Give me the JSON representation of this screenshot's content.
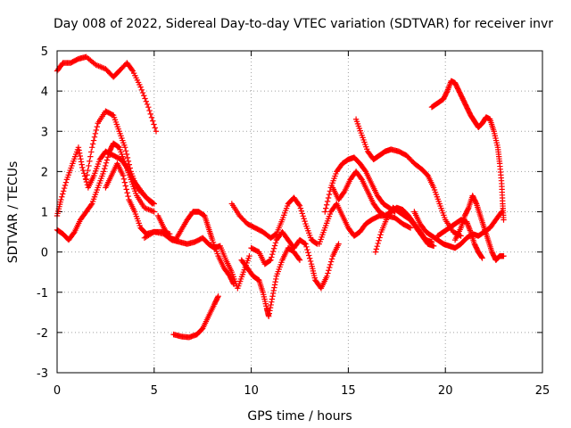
{
  "chart_data": {
    "type": "scatter",
    "title": "Day 008 of 2022, Sidereal Day-to-day VTEC variation (SDTVAR) for receiver invr",
    "xlabel": "GPS time / hours",
    "ylabel": "SDTVAR / TECUs",
    "xlim": [
      0,
      25
    ],
    "ylim": [
      -3,
      5
    ],
    "xticks": [
      "0",
      "5",
      "10",
      "15",
      "20",
      "25"
    ],
    "yticks": [
      "-3",
      "-2",
      "-1",
      "0",
      "1",
      "2",
      "3",
      "4",
      "5"
    ],
    "grid": true,
    "marker": "+",
    "color": "#ff0000",
    "series": [
      {
        "name": "trace-1",
        "points": [
          [
            0,
            4.5
          ],
          [
            0.3,
            4.7
          ],
          [
            0.7,
            4.7
          ],
          [
            1.1,
            4.8
          ],
          [
            1.5,
            4.85
          ],
          [
            2.0,
            4.65
          ],
          [
            2.5,
            4.55
          ],
          [
            2.9,
            4.35
          ],
          [
            3.2,
            4.5
          ],
          [
            3.6,
            4.7
          ],
          [
            3.9,
            4.5
          ],
          [
            4.3,
            4.1
          ],
          [
            4.7,
            3.6
          ],
          [
            5.1,
            3.0
          ]
        ]
      },
      {
        "name": "trace-2",
        "points": [
          [
            0,
            0.9
          ],
          [
            0.2,
            1.3
          ],
          [
            0.5,
            1.8
          ],
          [
            0.8,
            2.2
          ],
          [
            1.1,
            2.6
          ],
          [
            1.3,
            2.1
          ],
          [
            1.6,
            1.6
          ],
          [
            1.9,
            1.9
          ],
          [
            2.2,
            2.3
          ],
          [
            2.5,
            2.5
          ],
          [
            2.9,
            2.4
          ],
          [
            3.3,
            2.3
          ],
          [
            3.6,
            2.1
          ],
          [
            3.9,
            1.8
          ],
          [
            4.2,
            1.6
          ],
          [
            4.6,
            1.35
          ],
          [
            5.0,
            1.2
          ]
        ]
      },
      {
        "name": "trace-3",
        "points": [
          [
            0,
            0.55
          ],
          [
            0.3,
            0.45
          ],
          [
            0.6,
            0.3
          ],
          [
            0.9,
            0.5
          ],
          [
            1.2,
            0.8
          ],
          [
            1.5,
            1.0
          ],
          [
            1.8,
            1.2
          ],
          [
            2.1,
            1.6
          ],
          [
            2.4,
            2.0
          ],
          [
            2.7,
            2.5
          ],
          [
            2.9,
            2.7
          ],
          [
            3.2,
            2.6
          ],
          [
            3.5,
            2.2
          ],
          [
            3.8,
            1.8
          ],
          [
            4.1,
            1.4
          ],
          [
            4.5,
            1.1
          ],
          [
            5.0,
            1.0
          ]
        ]
      },
      {
        "name": "trace-4",
        "points": [
          [
            1.5,
            1.8
          ],
          [
            1.8,
            2.6
          ],
          [
            2.1,
            3.2
          ],
          [
            2.5,
            3.5
          ],
          [
            2.9,
            3.4
          ],
          [
            3.2,
            3.0
          ],
          [
            3.5,
            2.6
          ],
          [
            3.8,
            2.0
          ],
          [
            4.1,
            1.6
          ],
          [
            4.5,
            1.4
          ],
          [
            4.9,
            1.2
          ]
        ]
      },
      {
        "name": "trace-5",
        "points": [
          [
            2.5,
            1.6
          ],
          [
            2.8,
            1.9
          ],
          [
            3.1,
            2.2
          ],
          [
            3.4,
            1.9
          ],
          [
            3.7,
            1.3
          ],
          [
            4.0,
            1.0
          ],
          [
            4.3,
            0.6
          ],
          [
            4.6,
            0.45
          ],
          [
            5.0,
            0.5
          ],
          [
            5.4,
            0.5
          ],
          [
            5.8,
            0.45
          ]
        ]
      },
      {
        "name": "trace-6",
        "points": [
          [
            4.5,
            0.35
          ],
          [
            5.0,
            0.5
          ],
          [
            5.5,
            0.45
          ],
          [
            5.9,
            0.3
          ],
          [
            6.3,
            0.25
          ],
          [
            6.7,
            0.2
          ],
          [
            7.1,
            0.25
          ],
          [
            7.5,
            0.35
          ],
          [
            7.8,
            0.2
          ],
          [
            8.1,
            0.1
          ],
          [
            8.4,
            0.15
          ],
          [
            8.7,
            -0.2
          ],
          [
            9.0,
            -0.5
          ],
          [
            9.3,
            -0.9
          ],
          [
            9.6,
            -0.5
          ],
          [
            9.9,
            -0.1
          ]
        ]
      },
      {
        "name": "trace-7",
        "points": [
          [
            6.0,
            -2.05
          ],
          [
            6.4,
            -2.1
          ],
          [
            6.8,
            -2.12
          ],
          [
            7.2,
            -2.05
          ],
          [
            7.5,
            -1.9
          ],
          [
            7.8,
            -1.6
          ],
          [
            8.1,
            -1.3
          ],
          [
            8.3,
            -1.1
          ]
        ]
      },
      {
        "name": "trace-8",
        "points": [
          [
            5.2,
            0.9
          ],
          [
            5.5,
            0.6
          ],
          [
            5.8,
            0.35
          ],
          [
            6.1,
            0.3
          ],
          [
            6.4,
            0.55
          ],
          [
            6.7,
            0.8
          ],
          [
            7.0,
            1.0
          ],
          [
            7.3,
            1.0
          ],
          [
            7.6,
            0.9
          ],
          [
            7.8,
            0.6
          ],
          [
            8.0,
            0.3
          ],
          [
            8.3,
            -0.1
          ],
          [
            8.6,
            -0.4
          ],
          [
            8.9,
            -0.6
          ],
          [
            9.1,
            -0.8
          ]
        ]
      },
      {
        "name": "trace-9",
        "points": [
          [
            9.0,
            1.2
          ],
          [
            9.4,
            0.9
          ],
          [
            9.8,
            0.7
          ],
          [
            10.2,
            0.6
          ],
          [
            10.6,
            0.5
          ],
          [
            11.0,
            0.35
          ],
          [
            11.3,
            0.45
          ],
          [
            11.6,
            0.8
          ],
          [
            11.9,
            1.2
          ],
          [
            12.2,
            1.35
          ],
          [
            12.5,
            1.15
          ],
          [
            12.8,
            0.7
          ],
          [
            13.1,
            0.3
          ],
          [
            13.4,
            0.2
          ]
        ]
      },
      {
        "name": "trace-10",
        "points": [
          [
            9.5,
            -0.2
          ],
          [
            9.8,
            -0.4
          ],
          [
            10.1,
            -0.6
          ],
          [
            10.4,
            -0.7
          ],
          [
            10.6,
            -1.0
          ],
          [
            10.8,
            -1.4
          ],
          [
            10.9,
            -1.6
          ],
          [
            11.1,
            -1.1
          ],
          [
            11.3,
            -0.6
          ],
          [
            11.6,
            -0.2
          ],
          [
            11.9,
            0.1
          ],
          [
            12.2,
            0.0
          ],
          [
            12.5,
            -0.2
          ]
        ]
      },
      {
        "name": "trace-11",
        "points": [
          [
            10.0,
            0.1
          ],
          [
            10.4,
            0.0
          ],
          [
            10.7,
            -0.3
          ],
          [
            11.0,
            -0.2
          ],
          [
            11.3,
            0.3
          ],
          [
            11.6,
            0.5
          ],
          [
            11.9,
            0.3
          ],
          [
            12.2,
            0.1
          ],
          [
            12.5,
            0.3
          ],
          [
            12.8,
            0.2
          ],
          [
            13.1,
            -0.3
          ],
          [
            13.3,
            -0.7
          ],
          [
            13.6,
            -0.9
          ],
          [
            13.9,
            -0.6
          ],
          [
            14.2,
            -0.1
          ],
          [
            14.5,
            0.2
          ]
        ]
      },
      {
        "name": "trace-12",
        "points": [
          [
            13.5,
            0.2
          ],
          [
            13.8,
            0.6
          ],
          [
            14.1,
            1.0
          ],
          [
            14.4,
            1.2
          ],
          [
            14.7,
            0.9
          ],
          [
            15.0,
            0.6
          ],
          [
            15.3,
            0.4
          ],
          [
            15.6,
            0.5
          ],
          [
            15.9,
            0.7
          ],
          [
            16.2,
            0.8
          ],
          [
            16.6,
            0.9
          ],
          [
            17.0,
            0.9
          ],
          [
            17.4,
            0.85
          ],
          [
            17.8,
            0.7
          ],
          [
            18.2,
            0.6
          ]
        ]
      },
      {
        "name": "trace-13",
        "points": [
          [
            13.8,
            1.0
          ],
          [
            14.1,
            1.6
          ],
          [
            14.4,
            2.0
          ],
          [
            14.7,
            2.2
          ],
          [
            15.0,
            2.3
          ],
          [
            15.3,
            2.35
          ],
          [
            15.6,
            2.2
          ],
          [
            15.9,
            2.0
          ],
          [
            16.2,
            1.7
          ],
          [
            16.5,
            1.4
          ],
          [
            16.8,
            1.2
          ],
          [
            17.1,
            1.1
          ],
          [
            17.4,
            1.0
          ]
        ]
      },
      {
        "name": "trace-14",
        "points": [
          [
            15.4,
            3.3
          ],
          [
            15.7,
            2.9
          ],
          [
            16.0,
            2.5
          ],
          [
            16.3,
            2.3
          ],
          [
            16.6,
            2.4
          ],
          [
            16.9,
            2.5
          ],
          [
            17.2,
            2.55
          ],
          [
            17.6,
            2.5
          ],
          [
            18.0,
            2.4
          ],
          [
            18.4,
            2.2
          ],
          [
            18.8,
            2.05
          ],
          [
            19.1,
            1.9
          ],
          [
            19.4,
            1.6
          ],
          [
            19.7,
            1.2
          ],
          [
            20.0,
            0.8
          ],
          [
            20.4,
            0.5
          ],
          [
            20.8,
            0.4
          ]
        ]
      },
      {
        "name": "trace-15",
        "points": [
          [
            14.2,
            1.6
          ],
          [
            14.5,
            1.3
          ],
          [
            14.8,
            1.5
          ],
          [
            15.1,
            1.8
          ],
          [
            15.4,
            2.0
          ],
          [
            15.7,
            1.8
          ],
          [
            16.0,
            1.5
          ],
          [
            16.3,
            1.2
          ],
          [
            16.6,
            1.0
          ],
          [
            16.9,
            0.9
          ],
          [
            17.2,
            1.0
          ],
          [
            17.5,
            1.1
          ],
          [
            17.8,
            1.05
          ],
          [
            18.1,
            0.9
          ],
          [
            18.4,
            0.7
          ],
          [
            18.7,
            0.5
          ],
          [
            19.0,
            0.3
          ],
          [
            19.3,
            0.25
          ]
        ]
      },
      {
        "name": "trace-16",
        "points": [
          [
            16.4,
            0.0
          ],
          [
            16.7,
            0.5
          ],
          [
            17.0,
            0.85
          ],
          [
            17.3,
            1.1
          ],
          [
            17.6,
            1.0
          ],
          [
            17.9,
            0.9
          ],
          [
            18.2,
            0.8
          ],
          [
            18.5,
            0.6
          ],
          [
            18.8,
            0.4
          ],
          [
            19.1,
            0.2
          ],
          [
            19.4,
            0.15
          ]
        ]
      },
      {
        "name": "trace-17",
        "points": [
          [
            18.4,
            1.0
          ],
          [
            18.7,
            0.7
          ],
          [
            19.0,
            0.5
          ],
          [
            19.3,
            0.4
          ],
          [
            19.6,
            0.3
          ],
          [
            19.9,
            0.2
          ],
          [
            20.2,
            0.15
          ],
          [
            20.5,
            0.1
          ],
          [
            20.8,
            0.2
          ],
          [
            21.1,
            0.35
          ],
          [
            21.4,
            0.45
          ],
          [
            21.7,
            0.4
          ],
          [
            22.0,
            0.5
          ],
          [
            22.3,
            0.6
          ],
          [
            22.6,
            0.8
          ],
          [
            22.9,
            1.0
          ]
        ]
      },
      {
        "name": "trace-18",
        "points": [
          [
            19.3,
            3.6
          ],
          [
            19.6,
            3.7
          ],
          [
            19.9,
            3.8
          ],
          [
            20.1,
            4.0
          ],
          [
            20.3,
            4.25
          ],
          [
            20.5,
            4.2
          ],
          [
            20.7,
            4.0
          ],
          [
            20.9,
            3.8
          ],
          [
            21.1,
            3.6
          ],
          [
            21.3,
            3.4
          ],
          [
            21.5,
            3.25
          ],
          [
            21.7,
            3.1
          ],
          [
            21.9,
            3.2
          ],
          [
            22.1,
            3.35
          ],
          [
            22.3,
            3.3
          ],
          [
            22.5,
            3.0
          ],
          [
            22.7,
            2.6
          ],
          [
            22.8,
            2.2
          ],
          [
            22.9,
            1.7
          ],
          [
            22.95,
            1.2
          ],
          [
            23.0,
            0.8
          ]
        ]
      },
      {
        "name": "trace-19",
        "points": [
          [
            19.6,
            0.4
          ],
          [
            19.9,
            0.5
          ],
          [
            20.2,
            0.6
          ],
          [
            20.5,
            0.7
          ],
          [
            20.8,
            0.8
          ],
          [
            21.1,
            0.75
          ],
          [
            21.3,
            0.5
          ],
          [
            21.5,
            0.2
          ],
          [
            21.7,
            0.0
          ],
          [
            21.9,
            -0.15
          ]
        ]
      },
      {
        "name": "trace-20",
        "points": [
          [
            20.5,
            0.3
          ],
          [
            20.8,
            0.6
          ],
          [
            21.0,
            0.9
          ],
          [
            21.2,
            1.1
          ],
          [
            21.4,
            1.4
          ],
          [
            21.6,
            1.2
          ],
          [
            21.8,
            0.9
          ],
          [
            22.0,
            0.6
          ],
          [
            22.2,
            0.3
          ],
          [
            22.4,
            0.0
          ],
          [
            22.6,
            -0.2
          ],
          [
            22.8,
            -0.1
          ],
          [
            23.0,
            -0.1
          ]
        ]
      }
    ]
  }
}
